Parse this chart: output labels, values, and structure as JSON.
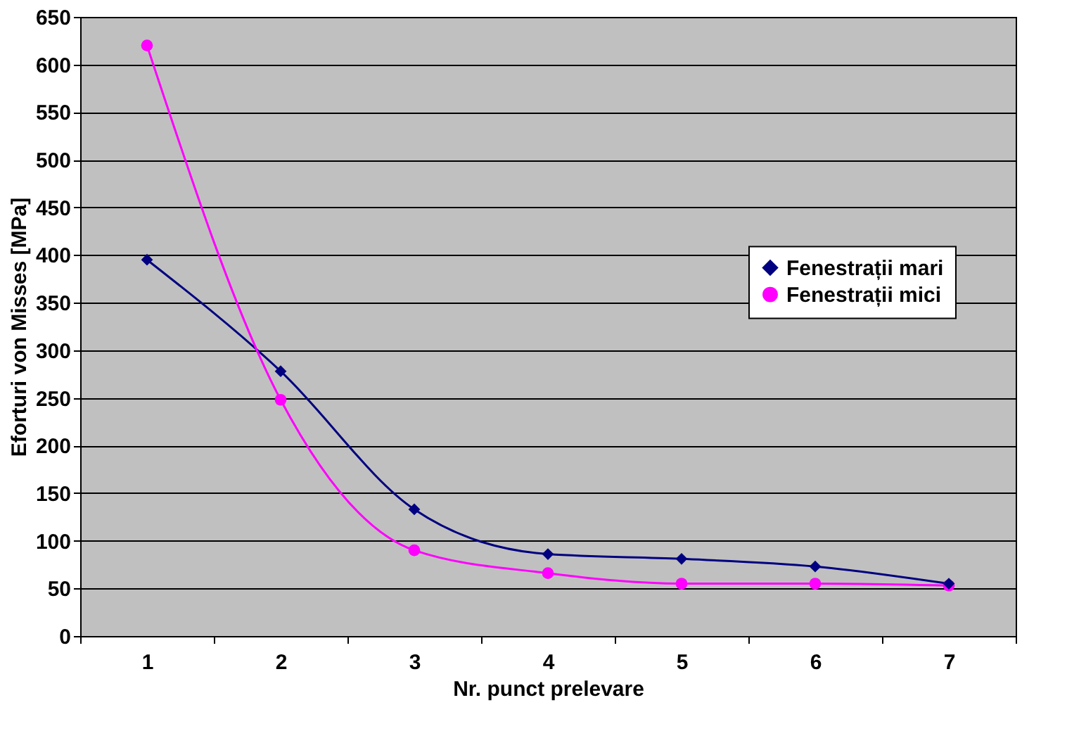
{
  "chart_data": {
    "type": "line",
    "xlabel": "Nr. punct prelevare",
    "ylabel": "Eforturi von Misses [MPa]",
    "categories": [
      "1",
      "2",
      "3",
      "4",
      "5",
      "6",
      "7"
    ],
    "series": [
      {
        "name": "Fenestrații mari",
        "color": "#000080",
        "marker": "diamond",
        "values": [
          395,
          278,
          133,
          86,
          81,
          73,
          55
        ]
      },
      {
        "name": "Fenestrații mici",
        "color": "#ff00ff",
        "marker": "circle",
        "values": [
          620,
          248,
          90,
          66,
          55,
          55,
          53
        ]
      }
    ],
    "ylim": [
      0,
      650
    ],
    "yticks": [
      0,
      50,
      100,
      150,
      200,
      250,
      300,
      350,
      400,
      450,
      500,
      550,
      600,
      650
    ],
    "grid": "y",
    "legend": "right",
    "line_style": "solid"
  }
}
